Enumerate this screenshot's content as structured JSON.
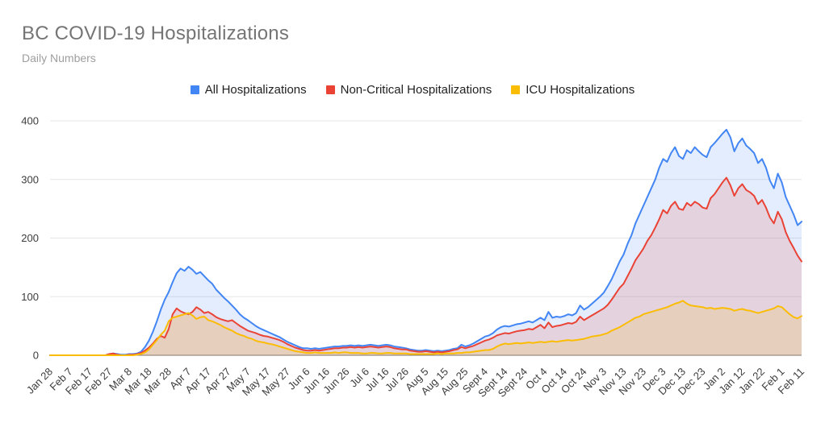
{
  "header": {
    "title": "BC COVID-19 Hospitalizations",
    "subtitle": "Daily Numbers"
  },
  "chart_data": {
    "type": "area",
    "title": "BC COVID-19 Hospitalizations",
    "subtitle": "Daily Numbers",
    "legend_position": "top-center",
    "grid": "horizontal-only",
    "y_axis": {
      "ticks": [
        0,
        100,
        200,
        300,
        400
      ],
      "range": [
        0,
        400
      ]
    },
    "x_axis": {
      "tick_labels": [
        "Jan 28",
        "Feb 7",
        "Feb 17",
        "Feb 27",
        "Mar 8",
        "Mar 18",
        "Mar 28",
        "Apr 7",
        "Apr 17",
        "Apr 27",
        "May 7",
        "May 17",
        "May 27",
        "Jun 6",
        "Jun 16",
        "Jun 26",
        "Jul 6",
        "Jul 16",
        "Jul 26",
        "Aug 5",
        "Aug 15",
        "Aug 25",
        "Sept 4",
        "Sept 14",
        "Sept 24",
        "Oct 4",
        "Oct 14",
        "Oct 24",
        "Nov 3",
        "Nov 13",
        "Nov 23",
        "Dec 3",
        "Dec 13",
        "Dec 23",
        "Jan 2",
        "Jan 12",
        "Jan 22",
        "Feb 1",
        "Feb 11"
      ],
      "tick_interval_days": 10
    },
    "sample_interval_days": 2,
    "series": [
      {
        "name": "All Hospitalizations",
        "color": "#4285F4",
        "values": [
          0,
          0,
          0,
          0,
          0,
          0,
          0,
          0,
          0,
          0,
          0,
          0,
          0,
          0,
          0,
          2,
          3,
          2,
          1,
          1,
          2,
          2,
          3,
          6,
          14,
          25,
          40,
          58,
          78,
          95,
          108,
          125,
          140,
          148,
          144,
          151,
          146,
          139,
          142,
          135,
          128,
          122,
          112,
          105,
          98,
          92,
          85,
          78,
          70,
          64,
          60,
          55,
          50,
          46,
          43,
          40,
          37,
          34,
          31,
          27,
          23,
          20,
          17,
          14,
          12,
          12,
          11,
          12,
          11,
          12,
          13,
          14,
          15,
          15,
          16,
          16,
          17,
          16,
          17,
          16,
          17,
          18,
          17,
          16,
          17,
          18,
          17,
          15,
          14,
          13,
          12,
          10,
          9,
          8,
          8,
          9,
          8,
          7,
          8,
          7,
          8,
          9,
          11,
          12,
          18,
          15,
          17,
          20,
          24,
          28,
          32,
          34,
          38,
          44,
          48,
          50,
          49,
          51,
          53,
          54,
          56,
          58,
          56,
          60,
          64,
          60,
          74,
          64,
          66,
          65,
          67,
          70,
          68,
          72,
          85,
          78,
          82,
          88,
          94,
          100,
          107,
          118,
          130,
          145,
          160,
          172,
          190,
          205,
          225,
          240,
          255,
          270,
          285,
          300,
          320,
          335,
          330,
          345,
          355,
          340,
          335,
          350,
          345,
          355,
          348,
          342,
          338,
          355,
          362,
          370,
          378,
          385,
          372,
          348,
          362,
          370,
          358,
          352,
          345,
          328,
          335,
          320,
          298,
          285,
          310,
          295,
          270,
          255,
          240,
          222,
          228
        ]
      },
      {
        "name": "Non-Critical Hospitalizations",
        "color": "#EA4335",
        "values": [
          0,
          0,
          0,
          0,
          0,
          0,
          0,
          0,
          0,
          0,
          0,
          0,
          0,
          0,
          0,
          2,
          3,
          1,
          0,
          0,
          1,
          1,
          2,
          4,
          8,
          13,
          20,
          28,
          33,
          30,
          45,
          70,
          80,
          75,
          72,
          70,
          74,
          82,
          78,
          72,
          74,
          70,
          65,
          62,
          60,
          58,
          60,
          55,
          50,
          46,
          42,
          40,
          38,
          35,
          33,
          32,
          30,
          28,
          26,
          23,
          19,
          16,
          13,
          11,
          9,
          8,
          8,
          9,
          8,
          9,
          10,
          11,
          12,
          12,
          13,
          13,
          14,
          13,
          14,
          13,
          14,
          15,
          14,
          13,
          14,
          15,
          14,
          12,
          11,
          10,
          10,
          8,
          7,
          6,
          6,
          7,
          6,
          5,
          6,
          5,
          6,
          7,
          9,
          10,
          14,
          12,
          14,
          16,
          19,
          22,
          25,
          27,
          30,
          34,
          36,
          38,
          37,
          39,
          41,
          42,
          43,
          45,
          44,
          48,
          52,
          46,
          56,
          48,
          50,
          51,
          53,
          55,
          54,
          57,
          66,
          60,
          64,
          68,
          72,
          76,
          80,
          86,
          95,
          105,
          115,
          122,
          135,
          148,
          162,
          172,
          182,
          195,
          205,
          218,
          232,
          248,
          242,
          255,
          262,
          250,
          248,
          260,
          255,
          262,
          258,
          252,
          250,
          268,
          275,
          285,
          295,
          303,
          290,
          272,
          285,
          292,
          282,
          278,
          272,
          258,
          265,
          252,
          235,
          225,
          245,
          232,
          210,
          195,
          183,
          170,
          160
        ]
      },
      {
        "name": "ICU Hospitalizations",
        "color": "#FBBC04",
        "values": [
          0,
          0,
          0,
          0,
          0,
          0,
          0,
          0,
          0,
          0,
          0,
          0,
          0,
          0,
          0,
          0,
          0,
          0,
          0,
          0,
          0,
          0,
          1,
          2,
          5,
          10,
          18,
          26,
          35,
          42,
          58,
          64,
          66,
          68,
          70,
          72,
          68,
          62,
          65,
          66,
          60,
          58,
          55,
          52,
          48,
          45,
          42,
          38,
          35,
          33,
          30,
          28,
          25,
          23,
          22,
          20,
          19,
          17,
          15,
          13,
          11,
          9,
          7,
          6,
          5,
          4,
          4,
          5,
          4,
          4,
          4,
          4,
          5,
          4,
          5,
          5,
          4,
          4,
          4,
          3,
          3,
          4,
          4,
          3,
          3,
          4,
          4,
          3,
          3,
          3,
          3,
          2,
          2,
          2,
          2,
          2,
          2,
          2,
          3,
          2,
          3,
          3,
          3,
          4,
          4,
          5,
          5,
          6,
          7,
          8,
          9,
          9,
          11,
          15,
          18,
          20,
          19,
          20,
          21,
          20,
          21,
          22,
          21,
          22,
          23,
          22,
          23,
          24,
          23,
          24,
          25,
          26,
          25,
          26,
          27,
          28,
          30,
          32,
          33,
          34,
          36,
          38,
          42,
          45,
          48,
          52,
          56,
          60,
          64,
          66,
          70,
          72,
          74,
          76,
          78,
          80,
          82,
          85,
          88,
          90,
          93,
          88,
          85,
          84,
          83,
          82,
          80,
          81,
          79,
          80,
          81,
          80,
          79,
          76,
          78,
          79,
          77,
          76,
          74,
          72,
          74,
          76,
          78,
          80,
          84,
          82,
          76,
          70,
          65,
          63,
          67
        ]
      }
    ]
  },
  "style_colors": {
    "title": "#757575",
    "subtitle": "#9e9e9e",
    "axis_label": "#3c3c3c",
    "gridline": "#e6e6e6",
    "baseline": "#757575",
    "legend_text": "#212121",
    "background": "#ffffff"
  }
}
